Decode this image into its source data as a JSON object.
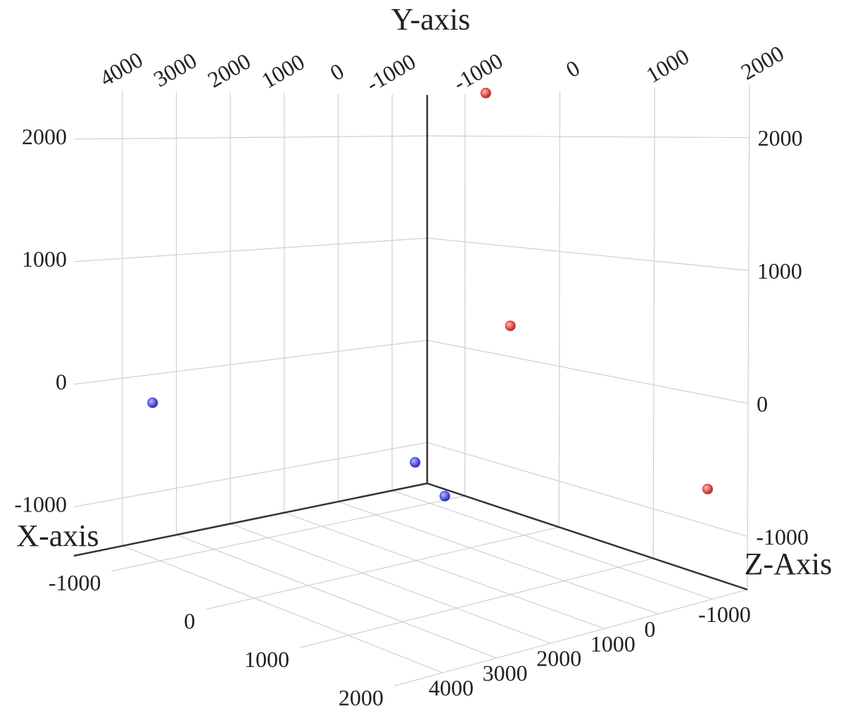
{
  "chart_data": {
    "type": "scatter3d",
    "x_label": "X-axis",
    "y_label": "Y-axis",
    "z_label": "Z-Axis",
    "xlim": [
      -1650,
      4900
    ],
    "ylim": [
      -1400,
      2400
    ],
    "zlim": [
      -1400,
      2000
    ],
    "xticks": [
      -1000,
      0,
      1000,
      2000,
      3000,
      4000
    ],
    "yticks": [
      -1000,
      0,
      1000,
      2000
    ],
    "zticks": [
      -1000,
      0,
      1000,
      2000
    ],
    "grid": true,
    "series": [
      {
        "color": "#3a3ae0",
        "x": [
          3440,
          -1427,
          -1414
        ],
        "y": [
          -240,
          -1172,
          -1400
        ],
        "z": [
          -1400,
          -1400,
          -1077
        ]
      },
      {
        "color": "#e02a2a",
        "x": [
          -1650,
          -1650,
          -1650
        ],
        "y": [
          280,
          -724,
          2400
        ],
        "z": [
          -519,
          1575,
          -781
        ]
      }
    ]
  }
}
